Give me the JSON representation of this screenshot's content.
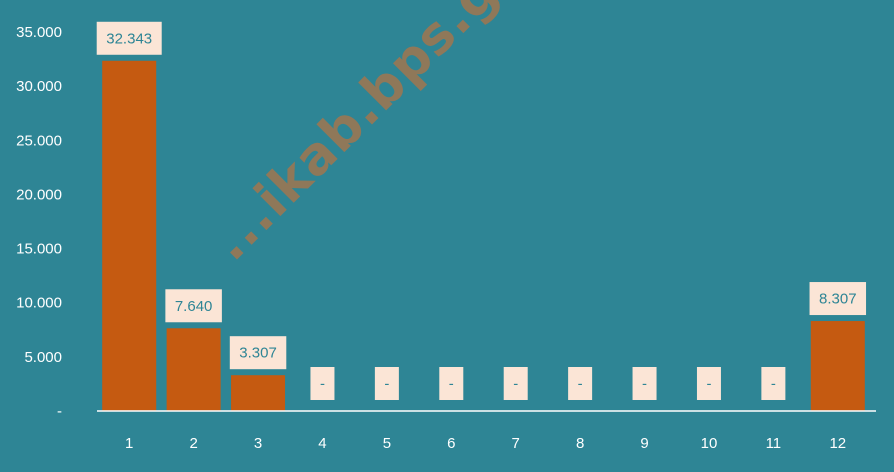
{
  "chart_data": {
    "type": "bar",
    "categories": [
      "1",
      "2",
      "3",
      "4",
      "5",
      "6",
      "7",
      "8",
      "9",
      "10",
      "11",
      "12"
    ],
    "values": [
      32343,
      7640,
      3307,
      0,
      0,
      0,
      0,
      0,
      0,
      0,
      0,
      8307
    ],
    "data_labels": [
      "32.343",
      "7.640",
      "3.307",
      "-",
      "-",
      "-",
      "-",
      "-",
      "-",
      "-",
      "-",
      "8.307"
    ],
    "y_ticks": [
      0,
      5000,
      10000,
      15000,
      20000,
      25000,
      30000,
      35000
    ],
    "y_tick_labels": [
      "-",
      "5.000",
      "10.000",
      "15.000",
      "20.000",
      "25.000",
      "30.000",
      "35.000"
    ],
    "ylim": [
      0,
      35000
    ],
    "title": "",
    "xlabel": "",
    "ylabel": "",
    "grid": false,
    "legend": "none"
  },
  "colors": {
    "background": "#2e8595",
    "bar": "#c55a11",
    "label_box": "#fbe5d6",
    "label_text": "#2e8595",
    "axis": "#ffffff",
    "tick_text": "#ffffff"
  },
  "watermark": "...ikab.bps.go.id"
}
